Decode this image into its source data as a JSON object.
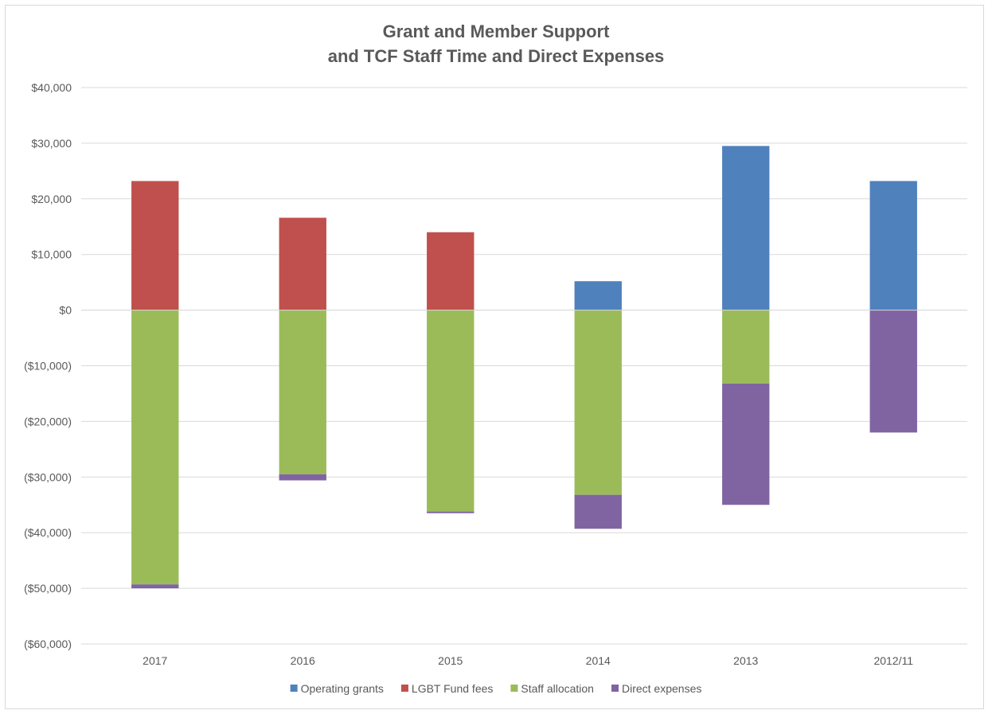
{
  "chart_data": {
    "type": "bar",
    "stacked": true,
    "title": [
      "Grant and Member Support",
      "and TCF Staff Time and Direct Expenses"
    ],
    "xlabel": "",
    "ylabel": "",
    "categories": [
      "2017",
      "2016",
      "2015",
      "2014",
      "2013",
      "2012/11"
    ],
    "ylim": [
      -60000,
      40000
    ],
    "yticks": [
      40000,
      30000,
      20000,
      10000,
      0,
      -10000,
      -20000,
      -30000,
      -40000,
      -50000,
      -60000
    ],
    "ytick_labels": [
      "$40,000",
      "$30,000",
      "$20,000",
      "$10,000",
      "$0",
      "($10,000)",
      "($20,000)",
      "($30,000)",
      "($40,000)",
      "($50,000)",
      "($60,000)"
    ],
    "grid": true,
    "legend_position": "bottom",
    "series": [
      {
        "name": "Operating grants",
        "color": "#4f81bd",
        "values": [
          0,
          0,
          0,
          5200,
          29500,
          23200
        ]
      },
      {
        "name": "LGBT Fund fees",
        "color": "#c0504d",
        "values": [
          23200,
          16600,
          14000,
          0,
          0,
          0
        ]
      },
      {
        "name": "Staff allocation",
        "color": "#9bbb59",
        "values": [
          -49300,
          -29500,
          -36200,
          -33200,
          -13200,
          0
        ]
      },
      {
        "name": "Direct expenses",
        "color": "#8064a2",
        "values": [
          -700,
          -1100,
          -300,
          -6100,
          -21800,
          -22000
        ]
      }
    ]
  }
}
